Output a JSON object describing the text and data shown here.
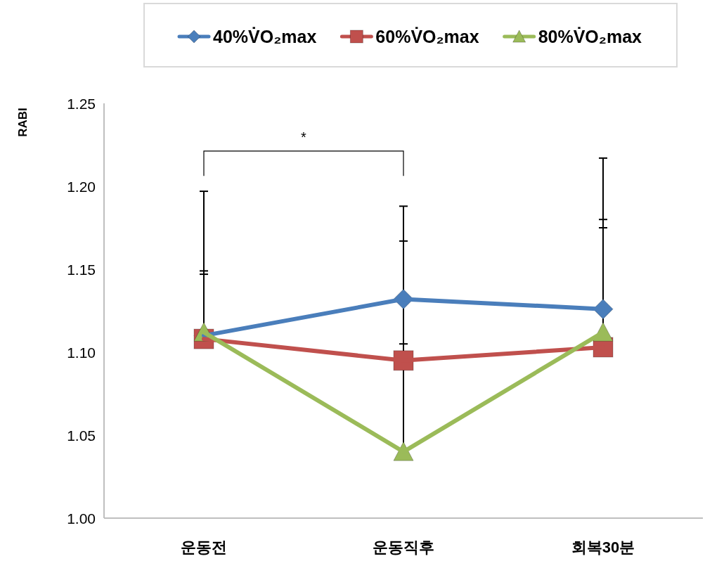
{
  "chart_data": {
    "type": "line",
    "categories": [
      "운동전",
      "운동직후",
      "회복30분"
    ],
    "ylabel": "RABI",
    "ylim": [
      1.0,
      1.25
    ],
    "yticks": [
      {
        "value": 1.0,
        "label": "1.00"
      },
      1.05,
      {
        "value": 1.1,
        "label": "1.10"
      },
      1.15,
      {
        "value": 1.2,
        "label": "1.20"
      },
      1.25
    ],
    "series": [
      {
        "name": "40%V̇O₂max",
        "color": "#4a7ebb",
        "marker": "diamond",
        "values": [
          1.11,
          1.132,
          1.126
        ],
        "errors": [
          [
            1.11,
            1.149
          ],
          [
            1.132,
            1.167
          ],
          [
            1.126,
            1.18
          ]
        ]
      },
      {
        "name": "60%V̇O₂max",
        "color": "#c0504d",
        "marker": "square",
        "values": [
          1.108,
          1.095,
          1.103
        ],
        "errors": [
          [
            1.108,
            1.147
          ],
          [
            1.095,
            1.105
          ],
          [
            1.103,
            1.175
          ]
        ]
      },
      {
        "name": "80%V̇O₂max",
        "color": "#9bbb59",
        "marker": "triangle",
        "values": [
          1.112,
          1.04,
          1.112
        ],
        "errors": [
          [
            1.112,
            1.197
          ],
          [
            1.04,
            1.188
          ],
          [
            1.112,
            1.217
          ]
        ]
      }
    ],
    "annotations": [
      "*"
    ],
    "legend": "top",
    "grid": false,
    "line_style": "solid"
  }
}
